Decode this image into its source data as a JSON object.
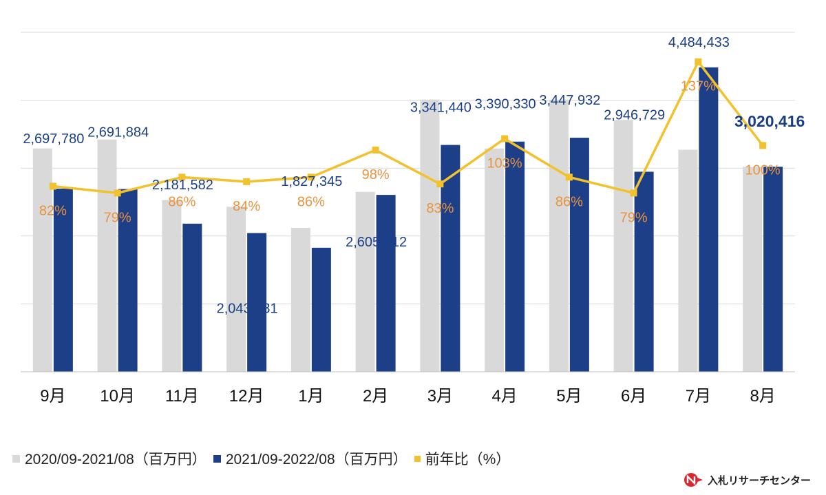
{
  "chart_data": {
    "type": "bar",
    "categories": [
      "9月",
      "10月",
      "11月",
      "12月",
      "1月",
      "2月",
      "3月",
      "4月",
      "5月",
      "6月",
      "7月",
      "8月"
    ],
    "series": [
      {
        "name": "2020/09-2021/08（百万円）",
        "color": "#d9d9d9",
        "values": [
          3290000,
          3420000,
          2530000,
          2430000,
          2120000,
          2650000,
          4010000,
          3290000,
          4010000,
          3710000,
          3270000,
          3020000
        ]
      },
      {
        "name": "2021/09-2022/08（百万円）",
        "color": "#1d3f88",
        "values": [
          2697780,
          2691884,
          2181582,
          2043931,
          1827345,
          2605512,
          3341440,
          3390330,
          3447932,
          2946729,
          4484433,
          3020416
        ],
        "labels": [
          "2,697,780",
          "2,691,884",
          "2,181,582",
          "2,043,931",
          "1,827,345",
          "2,605,512",
          "3,341,440",
          "3,390,330",
          "3,447,932",
          "2,946,729",
          "4,484,433",
          "3,020,416"
        ]
      }
    ],
    "line_series": {
      "name": "前年比（%）",
      "color": "#f2c12e",
      "values": [
        82,
        79,
        86,
        84,
        86,
        98,
        83,
        103,
        86,
        79,
        137,
        100
      ],
      "labels": [
        "82%",
        "79%",
        "86%",
        "84%",
        "86%",
        "98%",
        "83%",
        "103%",
        "86%",
        "79%",
        "137%",
        "100%"
      ]
    },
    "ylim": [
      0,
      5000000
    ],
    "line_ylim": [
      0,
      150
    ],
    "grid": true,
    "legend_position": "bottom-left"
  },
  "legend": {
    "items": [
      {
        "label": "2020/09-2021/08（百万円）",
        "color": "#d9d9d9"
      },
      {
        "label": "2021/09-2022/08（百万円）",
        "color": "#1d3f88"
      },
      {
        "label": "前年比（%）",
        "color": "#f2c12e"
      }
    ]
  },
  "logo": {
    "text": "入札リサーチセンター",
    "mark_color": "#d9272d"
  }
}
